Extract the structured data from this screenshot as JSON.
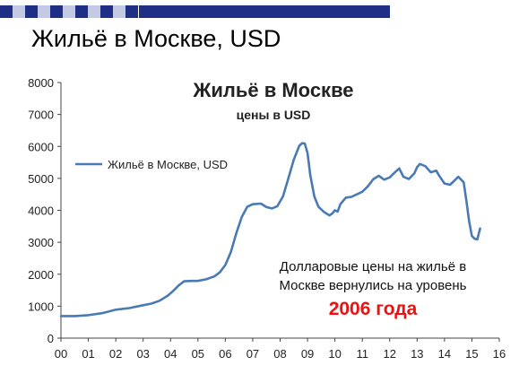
{
  "slide": {
    "title": "Жильё в Москве, USD",
    "header_colors": [
      "#1f2f86",
      "#8e98c9",
      "#c4c9e4",
      "#e6e8f4"
    ]
  },
  "chart_data": {
    "type": "line",
    "title": "Жильё в Москве",
    "subtitle": "цены в USD",
    "xlabel": "",
    "ylabel": "",
    "x_ticks": [
      "00",
      "01",
      "02",
      "03",
      "04",
      "05",
      "06",
      "07",
      "08",
      "09",
      "10",
      "11",
      "12",
      "13",
      "14",
      "15",
      "16"
    ],
    "y_ticks": [
      "0",
      "1000",
      "2000",
      "3000",
      "4000",
      "5000",
      "6000",
      "7000",
      "8000"
    ],
    "xlim": [
      0,
      16
    ],
    "ylim": [
      0,
      8000
    ],
    "grid": false,
    "legend_position": "left",
    "annotation": {
      "lines": [
        "Долларовые цены на жильё в",
        "Москве вернулись на уровень"
      ],
      "highlight": "2006 года",
      "highlight_color": "#ee1111"
    },
    "series": [
      {
        "name": "Жильё в Москве, USD",
        "color": "#4a7ab5",
        "points": [
          [
            0.0,
            690
          ],
          [
            0.5,
            690
          ],
          [
            1.0,
            720
          ],
          [
            1.5,
            780
          ],
          [
            2.0,
            890
          ],
          [
            2.5,
            940
          ],
          [
            3.0,
            1030
          ],
          [
            3.3,
            1080
          ],
          [
            3.6,
            1170
          ],
          [
            3.9,
            1330
          ],
          [
            4.1,
            1480
          ],
          [
            4.3,
            1650
          ],
          [
            4.5,
            1780
          ],
          [
            4.8,
            1790
          ],
          [
            5.0,
            1790
          ],
          [
            5.3,
            1840
          ],
          [
            5.6,
            1930
          ],
          [
            5.8,
            2060
          ],
          [
            6.0,
            2290
          ],
          [
            6.2,
            2690
          ],
          [
            6.4,
            3280
          ],
          [
            6.6,
            3790
          ],
          [
            6.8,
            4110
          ],
          [
            7.0,
            4190
          ],
          [
            7.3,
            4210
          ],
          [
            7.5,
            4100
          ],
          [
            7.7,
            4060
          ],
          [
            7.9,
            4130
          ],
          [
            8.1,
            4430
          ],
          [
            8.3,
            5000
          ],
          [
            8.5,
            5590
          ],
          [
            8.7,
            6020
          ],
          [
            8.8,
            6100
          ],
          [
            8.9,
            6090
          ],
          [
            9.0,
            5790
          ],
          [
            9.1,
            5110
          ],
          [
            9.25,
            4430
          ],
          [
            9.4,
            4110
          ],
          [
            9.6,
            3950
          ],
          [
            9.8,
            3840
          ],
          [
            9.9,
            3900
          ],
          [
            10.0,
            4000
          ],
          [
            10.1,
            3960
          ],
          [
            10.2,
            4190
          ],
          [
            10.4,
            4400
          ],
          [
            10.6,
            4420
          ],
          [
            10.8,
            4500
          ],
          [
            11.0,
            4580
          ],
          [
            11.2,
            4750
          ],
          [
            11.4,
            4970
          ],
          [
            11.6,
            5080
          ],
          [
            11.8,
            4960
          ],
          [
            12.0,
            5030
          ],
          [
            12.2,
            5200
          ],
          [
            12.35,
            5310
          ],
          [
            12.5,
            5050
          ],
          [
            12.7,
            4980
          ],
          [
            12.9,
            5160
          ],
          [
            13.0,
            5350
          ],
          [
            13.1,
            5450
          ],
          [
            13.3,
            5380
          ],
          [
            13.5,
            5190
          ],
          [
            13.7,
            5240
          ],
          [
            13.8,
            5090
          ],
          [
            14.0,
            4840
          ],
          [
            14.2,
            4800
          ],
          [
            14.4,
            4960
          ],
          [
            14.5,
            5050
          ],
          [
            14.7,
            4880
          ],
          [
            14.8,
            4300
          ],
          [
            14.9,
            3650
          ],
          [
            15.0,
            3200
          ],
          [
            15.1,
            3110
          ],
          [
            15.2,
            3090
          ],
          [
            15.3,
            3430
          ]
        ]
      }
    ]
  }
}
